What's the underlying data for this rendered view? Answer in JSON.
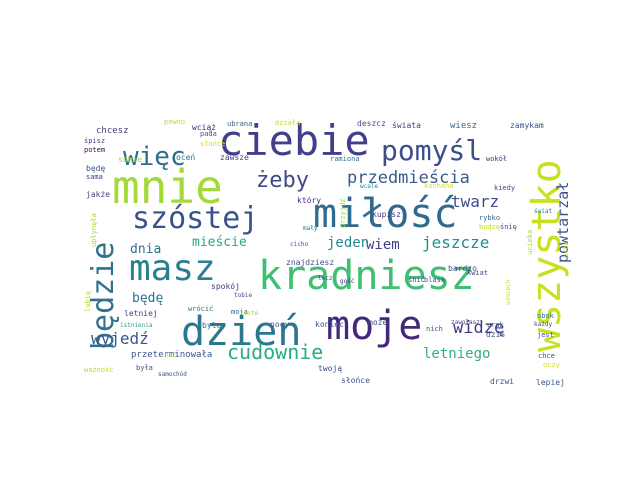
{
  "words": [
    {
      "text": "mnie",
      "size": 46,
      "color": "#a3d938"
    },
    {
      "text": "ciebie",
      "size": 42,
      "color": "#413f8a"
    },
    {
      "text": "miłość",
      "size": 40,
      "color": "#2f6b8e"
    },
    {
      "text": "kradniesz",
      "size": 40,
      "color": "#3fbf72"
    },
    {
      "text": "dzień",
      "size": 40,
      "color": "#2a778e"
    },
    {
      "text": "moje",
      "size": 40,
      "color": "#46287a"
    },
    {
      "text": "wszystko",
      "size": 40,
      "color": "#c8e020"
    },
    {
      "text": "masz",
      "size": 36,
      "color": "#2b7f8e"
    },
    {
      "text": "będzie",
      "size": 30,
      "color": "#30718e"
    },
    {
      "text": "szóstej",
      "size": 30,
      "color": "#3a528b"
    },
    {
      "text": "pomyśl",
      "size": 28,
      "color": "#3c4f8a"
    },
    {
      "text": "więc",
      "size": 26,
      "color": "#2e6e8e"
    },
    {
      "text": "cudownie",
      "size": 20,
      "color": "#27ad81"
    },
    {
      "text": "żeby",
      "size": 22,
      "color": "#3e4a89"
    },
    {
      "text": "przedmieścia",
      "size": 17,
      "color": "#365c8d"
    },
    {
      "text": "twarz",
      "size": 16,
      "color": "#3d4d8a"
    },
    {
      "text": "jeszcze",
      "size": 16,
      "color": "#21918c"
    },
    {
      "text": "wiem",
      "size": 14,
      "color": "#424086"
    },
    {
      "text": "jeden",
      "size": 14,
      "color": "#23898e"
    },
    {
      "text": "dnia",
      "size": 13,
      "color": "#2c738e"
    },
    {
      "text": "mieście",
      "size": 13,
      "color": "#25a884"
    },
    {
      "text": "powtarzał",
      "size": 15,
      "color": "#3b528b"
    },
    {
      "text": "widzę",
      "size": 17,
      "color": "#453882"
    },
    {
      "text": "letniego",
      "size": 14,
      "color": "#2db27d"
    },
    {
      "text": "wyjedź",
      "size": 16,
      "color": "#375a8c"
    },
    {
      "text": "będę",
      "size": 13,
      "color": "#2d708e"
    },
    {
      "text": "przeterminowała",
      "size": 9,
      "color": "#3a548c"
    },
    {
      "text": "chcesz",
      "size": 9,
      "color": "#433e85"
    },
    {
      "text": "pewno",
      "size": 7,
      "color": "#b8de29"
    },
    {
      "text": "wciąż",
      "size": 8,
      "color": "#482878"
    },
    {
      "text": "ubrana",
      "size": 7,
      "color": "#38588c"
    },
    {
      "text": "działa",
      "size": 7,
      "color": "#c0df25"
    },
    {
      "text": "deszcz",
      "size": 8,
      "color": "#3e4c8a"
    },
    {
      "text": "świata",
      "size": 8,
      "color": "#443a83"
    },
    {
      "text": "wiesz",
      "size": 9,
      "color": "#2e6f8e"
    },
    {
      "text": "zamykam",
      "size": 8,
      "color": "#3b518b"
    },
    {
      "text": "śpisz",
      "size": 7,
      "color": "#3f4788"
    },
    {
      "text": "potem",
      "size": 7,
      "color": "#440154"
    },
    {
      "text": "pada",
      "size": 7,
      "color": "#38598c"
    },
    {
      "text": "słońce",
      "size": 7,
      "color": "#d0e11c"
    },
    {
      "text": "oceń",
      "size": 8,
      "color": "#2c728e"
    },
    {
      "text": "zawsze",
      "size": 8,
      "color": "#3f4889"
    },
    {
      "text": "sobie",
      "size": 8,
      "color": "#a0da39"
    },
    {
      "text": "ramiona",
      "size": 7,
      "color": "#2d708e"
    },
    {
      "text": "wokół",
      "size": 7,
      "color": "#453781"
    },
    {
      "text": "będę",
      "size": 8,
      "color": "#3b528b"
    },
    {
      "text": "sama",
      "size": 7,
      "color": "#433d84"
    },
    {
      "text": "jakże",
      "size": 8,
      "color": "#3f4788"
    },
    {
      "text": "który",
      "size": 8,
      "color": "#46307e"
    },
    {
      "text": "kupisz",
      "size": 8,
      "color": "#453882"
    },
    {
      "text": "mały",
      "size": 6,
      "color": "#2a778e"
    },
    {
      "text": "kochana",
      "size": 7,
      "color": "#d5e21a"
    },
    {
      "text": "kiedy",
      "size": 7,
      "color": "#3c4f8a"
    },
    {
      "text": "wcale",
      "size": 6,
      "color": "#238a8d"
    },
    {
      "text": "przyjdź",
      "size": 7,
      "color": "#95d840"
    },
    {
      "text": "rybko",
      "size": 7,
      "color": "#31688e"
    },
    {
      "text": "budzę",
      "size": 7,
      "color": "#c2df23"
    },
    {
      "text": "świat",
      "size": 6,
      "color": "#287d8e"
    },
    {
      "text": "ucieka",
      "size": 7,
      "color": "#aadc32"
    },
    {
      "text": "upłynęła",
      "size": 7,
      "color": "#a8db34"
    },
    {
      "text": "cicho",
      "size": 6,
      "color": "#3d4e8a"
    },
    {
      "text": "ciche",
      "size": 6,
      "color": "#c7e020"
    },
    {
      "text": "znajdziesz",
      "size": 8,
      "color": "#3b528b"
    },
    {
      "text": "lecz",
      "size": 6,
      "color": "#424086"
    },
    {
      "text": "gość",
      "size": 6,
      "color": "#46307e"
    },
    {
      "text": "bardzo",
      "size": 8,
      "color": "#3b528b"
    },
    {
      "text": "blask",
      "size": 7,
      "color": "#3b528b"
    },
    {
      "text": "śnić",
      "size": 7,
      "color": "#453882"
    },
    {
      "text": "śnię",
      "size": 7,
      "color": "#3e4a89"
    },
    {
      "text": "spokój",
      "size": 8,
      "color": "#443983"
    },
    {
      "text": "tobie",
      "size": 6,
      "color": "#3f4889"
    },
    {
      "text": "wrócić",
      "size": 7,
      "color": "#2a788e"
    },
    {
      "text": "moja",
      "size": 7,
      "color": "#31688e"
    },
    {
      "text": "było",
      "size": 8,
      "color": "#2b758e"
    },
    {
      "text": "nocy",
      "size": 8,
      "color": "#3e4c8a"
    },
    {
      "text": "koniec",
      "size": 8,
      "color": "#38598c"
    },
    {
      "text": "może",
      "size": 8,
      "color": "#3b528b"
    },
    {
      "text": "nich",
      "size": 7,
      "color": "#38598c"
    },
    {
      "text": "zawołasz",
      "size": 6,
      "color": "#433d84"
    },
    {
      "text": "urok",
      "size": 7,
      "color": "#3d4e8a"
    },
    {
      "text": "dziś",
      "size": 8,
      "color": "#3b528b"
    },
    {
      "text": "kwiat",
      "size": 7,
      "color": "#404387"
    },
    {
      "text": "obok",
      "size": 7,
      "color": "#2c718e"
    },
    {
      "text": "każdy",
      "size": 6,
      "color": "#3e4c8a"
    },
    {
      "text": "jest",
      "size": 7,
      "color": "#35608d"
    },
    {
      "text": "chce",
      "size": 7,
      "color": "#3b518b"
    },
    {
      "text": "oczy",
      "size": 7,
      "color": "#cde11d"
    },
    {
      "text": "lepiej",
      "size": 8,
      "color": "#3a548c"
    },
    {
      "text": "drzwi",
      "size": 8,
      "color": "#3c508b"
    },
    {
      "text": "twoją",
      "size": 8,
      "color": "#3e4a89"
    },
    {
      "text": "letniej",
      "size": 8,
      "color": "#424086"
    },
    {
      "text": "istnienia",
      "size": 6,
      "color": "#22a785"
    },
    {
      "text": "choć",
      "size": 7,
      "color": "#c0df25"
    },
    {
      "text": "była",
      "size": 7,
      "color": "#3c4f8a"
    },
    {
      "text": "ważność",
      "size": 7,
      "color": "#b5de2b"
    },
    {
      "text": "samochód",
      "size": 6,
      "color": "#3a548c"
    },
    {
      "text": "lubię",
      "size": 7,
      "color": "#b2dd2d"
    },
    {
      "text": "słońce",
      "size": 8,
      "color": "#3b528b"
    },
    {
      "text": "złote",
      "size": 6,
      "color": "#9bd93c"
    },
    {
      "text": "uśmiech",
      "size": 6,
      "color": "#c8e020"
    }
  ]
}
